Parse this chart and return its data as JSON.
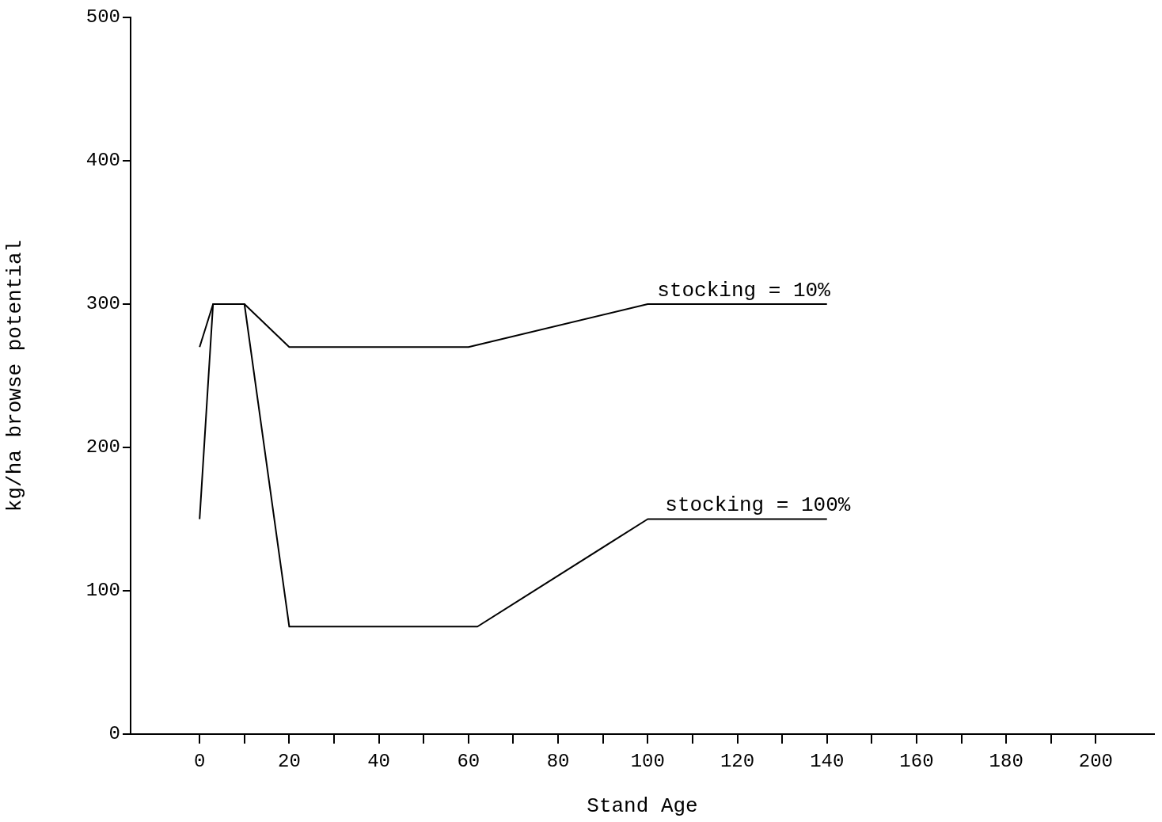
{
  "chart_data": {
    "type": "line",
    "xlabel": "Stand Age",
    "ylabel": "kg/ha browse potential",
    "xlim": [
      -15.4,
      213
    ],
    "xticks": [
      0,
      {
        "value": 10,
        "label": null
      },
      20,
      {
        "value": 30,
        "label": null
      },
      40,
      {
        "value": 50,
        "label": null
      },
      60,
      {
        "value": 70,
        "label": null
      },
      80,
      {
        "value": 90,
        "label": null
      },
      100,
      {
        "value": 110,
        "label": null
      },
      120,
      {
        "value": 130,
        "label": null
      },
      140,
      {
        "value": 150,
        "label": null
      },
      160,
      {
        "value": 170,
        "label": null
      },
      180,
      {
        "value": 190,
        "label": null
      },
      200
    ],
    "ylim": [
      0,
      500
    ],
    "yticks": [
      0,
      100,
      200,
      300,
      400,
      500
    ],
    "series": [
      {
        "name": "stocking = 10%",
        "color": "#000000",
        "x": [
          0,
          3,
          10,
          20,
          60,
          100,
          140
        ],
        "values": [
          270,
          300,
          300,
          270,
          270,
          300,
          300
        ]
      },
      {
        "name": "stocking = 100%",
        "color": "#000000",
        "x": [
          0,
          3,
          10,
          20,
          62,
          100,
          140
        ],
        "values": [
          150,
          300,
          300,
          75,
          75,
          150,
          150
        ]
      }
    ],
    "grid": false,
    "legend": false,
    "marker": "none",
    "line_style": "solid"
  }
}
